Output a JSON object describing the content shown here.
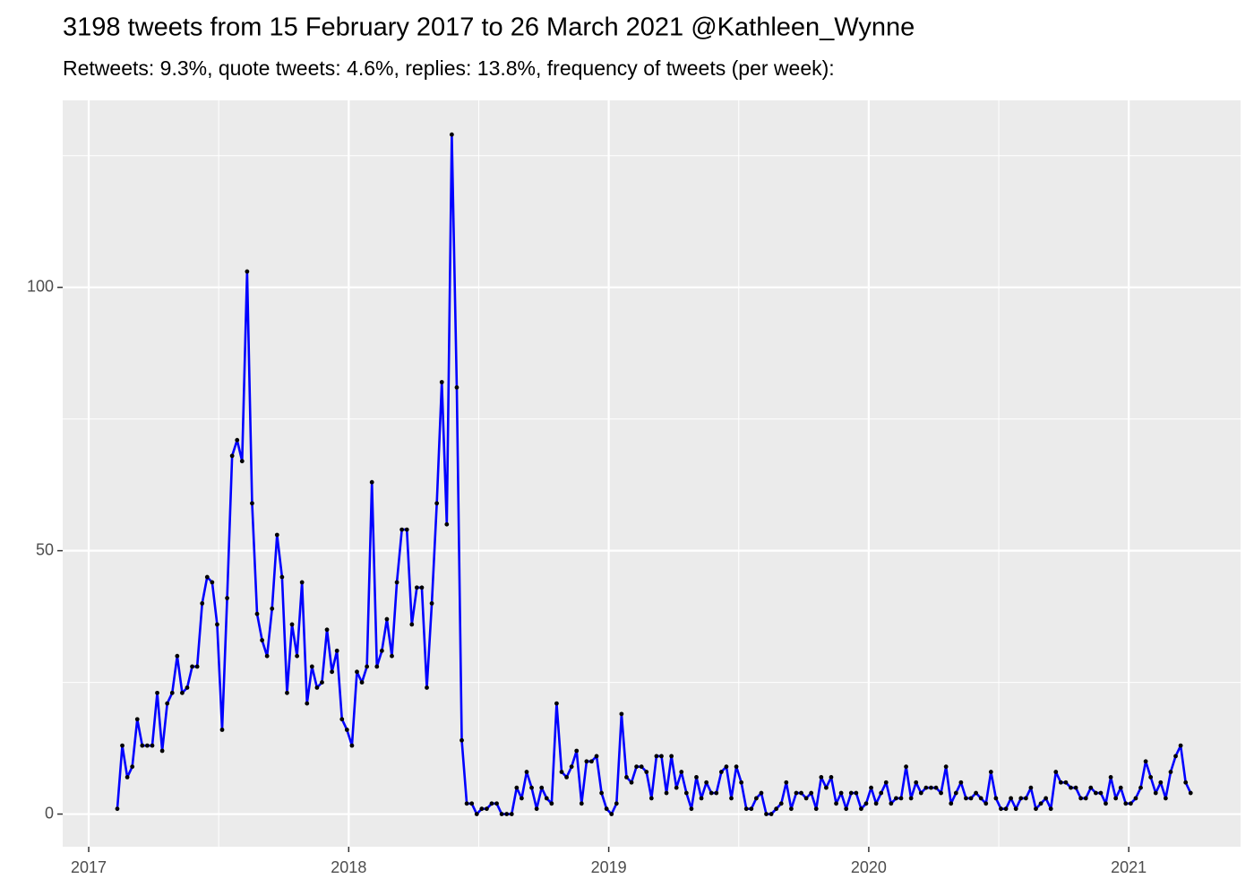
{
  "chart_data": {
    "type": "line",
    "title": "3198 tweets from 15 February 2017 to 26 March 2021 @Kathleen_Wynne",
    "subtitle": "Retweets: 9.3%, quote tweets: 4.6%, replies: 13.8%, frequency of tweets (per week):",
    "color": "#0000ff",
    "point_color": "#000000",
    "grid": true,
    "xlim": [
      2016.9,
      2021.43
    ],
    "xticks": [
      2017,
      2018,
      2019,
      2020,
      2021
    ],
    "ylim": [
      -6.2,
      135.5
    ],
    "yticks": [
      0,
      50,
      100
    ],
    "x": [
      2017.11,
      2017.1292,
      2017.1484,
      2017.1676,
      2017.1868,
      2017.206,
      2017.2252,
      2017.2444,
      2017.2636,
      2017.2828,
      2017.302,
      2017.3212,
      2017.3404,
      2017.3596,
      2017.3788,
      2017.398,
      2017.4172,
      2017.4364,
      2017.4556,
      2017.4748,
      2017.494,
      2017.5132,
      2017.5324,
      2017.5516,
      2017.5708,
      2017.59,
      2017.6092,
      2017.6284,
      2017.6476,
      2017.6668,
      2017.686,
      2017.7052,
      2017.7244,
      2017.7436,
      2017.7628,
      2017.782,
      2017.8012,
      2017.8204,
      2017.8396,
      2017.8588,
      2017.878,
      2017.8972,
      2017.9164,
      2017.9356,
      2017.9548,
      2017.974,
      2017.9932,
      2018.0124,
      2018.0316,
      2018.0508,
      2018.07,
      2018.0892,
      2018.1084,
      2018.1276,
      2018.1468,
      2018.166,
      2018.1852,
      2018.2044,
      2018.2236,
      2018.2428,
      2018.262,
      2018.2812,
      2018.3004,
      2018.3196,
      2018.3388,
      2018.358,
      2018.3772,
      2018.3964,
      2018.4156,
      2018.4348,
      2018.454,
      2018.4732,
      2018.4924,
      2018.5116,
      2018.5308,
      2018.55,
      2018.5692,
      2018.5884,
      2018.6076,
      2018.6268,
      2018.646,
      2018.6652,
      2018.6844,
      2018.7036,
      2018.7228,
      2018.742,
      2018.7612,
      2018.7804,
      2018.7996,
      2018.8188,
      2018.838,
      2018.8572,
      2018.8764,
      2018.8956,
      2018.9148,
      2018.934,
      2018.9532,
      2018.9724,
      2018.9916,
      2019.0108,
      2019.03,
      2019.0492,
      2019.0684,
      2019.0876,
      2019.1068,
      2019.126,
      2019.1452,
      2019.1644,
      2019.1836,
      2019.2028,
      2019.222,
      2019.2412,
      2019.2604,
      2019.2796,
      2019.2988,
      2019.318,
      2019.3372,
      2019.3564,
      2019.3756,
      2019.3948,
      2019.414,
      2019.4332,
      2019.4524,
      2019.4716,
      2019.4908,
      2019.51,
      2019.5292,
      2019.5484,
      2019.5676,
      2019.5868,
      2019.606,
      2019.6252,
      2019.6444,
      2019.6636,
      2019.6828,
      2019.702,
      2019.7212,
      2019.7404,
      2019.7596,
      2019.7788,
      2019.798,
      2019.8172,
      2019.8364,
      2019.8556,
      2019.8748,
      2019.894,
      2019.9132,
      2019.9324,
      2019.9516,
      2019.9708,
      2019.99,
      2020.0092,
      2020.0284,
      2020.0476,
      2020.0668,
      2020.086,
      2020.1052,
      2020.1244,
      2020.1436,
      2020.1628,
      2020.182,
      2020.2012,
      2020.2204,
      2020.2396,
      2020.2588,
      2020.278,
      2020.2972,
      2020.3164,
      2020.3356,
      2020.3548,
      2020.374,
      2020.3932,
      2020.4124,
      2020.4316,
      2020.4508,
      2020.47,
      2020.4892,
      2020.5084,
      2020.5276,
      2020.5468,
      2020.566,
      2020.5852,
      2020.6044,
      2020.6236,
      2020.6428,
      2020.662,
      2020.6812,
      2020.7004,
      2020.7196,
      2020.7388,
      2020.758,
      2020.7772,
      2020.7964,
      2020.8156,
      2020.8348,
      2020.854,
      2020.8732,
      2020.8924,
      2020.9116,
      2020.9308,
      2020.95,
      2020.9692,
      2020.9884,
      2021.0076,
      2021.0268,
      2021.046,
      2021.0652,
      2021.0844,
      2021.1036,
      2021.1228,
      2021.142,
      2021.1612,
      2021.1804,
      2021.1996,
      2021.2188,
      2021.238
    ],
    "values": [
      1,
      13,
      7,
      9,
      18,
      13,
      13,
      13,
      23,
      12,
      21,
      23,
      30,
      23,
      24,
      28,
      28,
      40,
      45,
      44,
      36,
      16,
      41,
      68,
      71,
      67,
      103,
      59,
      38,
      33,
      30,
      39,
      53,
      45,
      23,
      36,
      30,
      44,
      21,
      28,
      24,
      25,
      35,
      27,
      31,
      18,
      16,
      13,
      27,
      25,
      28,
      63,
      28,
      31,
      37,
      30,
      44,
      54,
      54,
      36,
      43,
      43,
      24,
      40,
      59,
      82,
      55,
      129,
      81,
      14,
      2,
      2,
      0,
      1,
      1,
      2,
      2,
      0,
      0,
      0,
      5,
      3,
      8,
      5,
      1,
      5,
      3,
      2,
      21,
      8,
      7,
      9,
      12,
      2,
      10,
      10,
      11,
      4,
      1,
      0,
      2,
      19,
      7,
      6,
      9,
      9,
      8,
      3,
      11,
      11,
      4,
      11,
      5,
      8,
      4,
      1,
      7,
      3,
      6,
      4,
      4,
      8,
      9,
      3,
      9,
      6,
      1,
      1,
      3,
      4,
      0,
      0,
      1,
      2,
      6,
      1,
      4,
      4,
      3,
      4,
      1,
      7,
      5,
      7,
      2,
      4,
      1,
      4,
      4,
      1,
      2,
      5,
      2,
      4,
      6,
      2,
      3,
      3,
      9,
      3,
      6,
      4,
      5,
      5,
      5,
      4,
      9,
      2,
      4,
      6,
      3,
      3,
      4,
      3,
      2,
      8,
      3,
      1,
      1,
      3,
      1,
      3,
      3,
      5,
      1,
      2,
      3,
      1,
      8,
      6,
      6,
      5,
      5,
      3,
      3,
      5,
      4,
      4,
      2,
      7,
      3,
      5,
      2,
      2,
      3,
      5,
      10,
      7,
      4,
      6,
      3,
      8,
      11,
      13,
      6,
      4
    ]
  }
}
